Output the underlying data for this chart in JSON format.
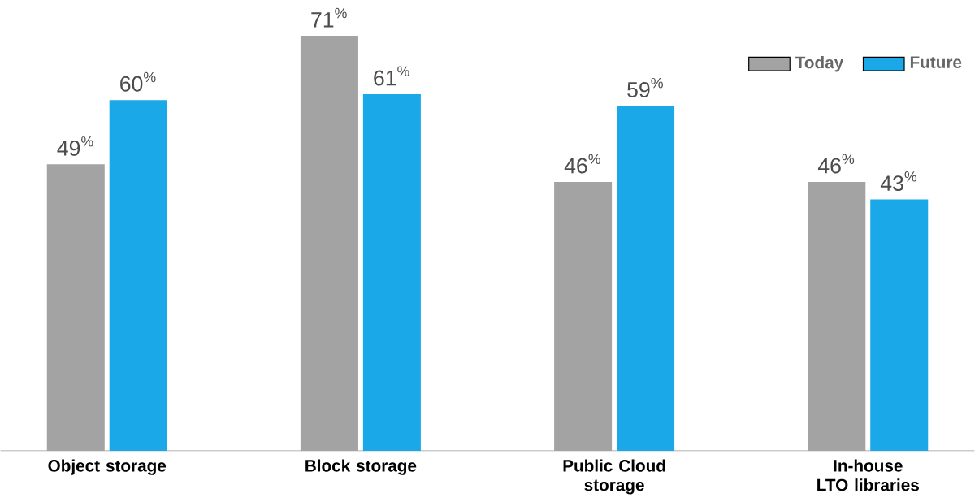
{
  "chart_data": {
    "type": "bar",
    "categories": [
      "Object storage",
      "Block storage",
      "Public Cloud storage",
      "In-house LTO libraries"
    ],
    "series": [
      {
        "name": "Today",
        "color": "#a3a3a3",
        "values": [
          49,
          71,
          46,
          46
        ],
        "value_labels": [
          "49$^{%}$",
          "71$^{%}$",
          "46$^{%}$",
          "46$^{%}$"
        ]
      },
      {
        "name": "Future",
        "color": "#1aa8e8",
        "values": [
          60,
          61,
          59,
          43
        ],
        "value_labels": [
          "60$^{%}$",
          "61$^{%}$",
          "59$^{%}$",
          "43$^{%}$"
        ]
      }
    ],
    "legend": "top right"
  }
}
